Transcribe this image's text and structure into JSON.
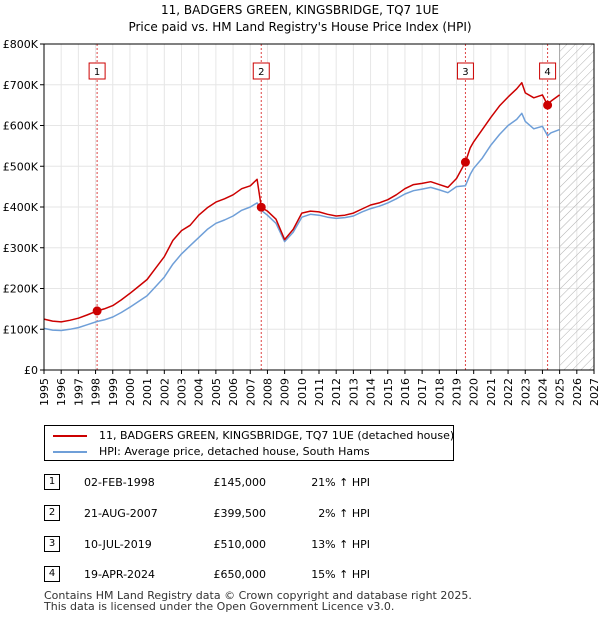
{
  "chart_data": {
    "type": "line",
    "title": "11, BADGERS GREEN, KINGSBRIDGE, TQ7 1UE",
    "subtitle": "Price paid vs. HM Land Registry's House Price Index (HPI)",
    "xlim": [
      1995,
      2027
    ],
    "ylim": [
      0,
      800000
    ],
    "x_ticks": [
      1995,
      1996,
      1997,
      1998,
      1999,
      2000,
      2001,
      2002,
      2003,
      2004,
      2005,
      2006,
      2007,
      2008,
      2009,
      2010,
      2011,
      2012,
      2013,
      2014,
      2015,
      2016,
      2017,
      2018,
      2019,
      2020,
      2021,
      2022,
      2023,
      2024,
      2025,
      2026,
      2027
    ],
    "y_ticks": [
      {
        "value": 0,
        "label": "£0"
      },
      {
        "value": 100000,
        "label": "£100K"
      },
      {
        "value": 200000,
        "label": "£200K"
      },
      {
        "value": 300000,
        "label": "£300K"
      },
      {
        "value": 400000,
        "label": "£400K"
      },
      {
        "value": 500000,
        "label": "£500K"
      },
      {
        "value": 600000,
        "label": "£600K"
      },
      {
        "value": 700000,
        "label": "£700K"
      },
      {
        "value": 800000,
        "label": "£800K"
      }
    ],
    "forecast_start": 2025.0,
    "series": [
      {
        "name": "11, BADGERS GREEN, KINGSBRIDGE, TQ7 1UE (detached house)",
        "color": "#cc0000",
        "x": [
          1995.0,
          1995.5,
          1996.0,
          1996.5,
          1997.0,
          1997.5,
          1998.09,
          1998.5,
          1999.0,
          1999.5,
          2000.0,
          2000.5,
          2001.0,
          2001.5,
          2002.0,
          2002.5,
          2003.0,
          2003.5,
          2004.0,
          2004.5,
          2005.0,
          2005.5,
          2006.0,
          2006.5,
          2007.0,
          2007.4,
          2007.64,
          2008.0,
          2008.5,
          2009.0,
          2009.5,
          2010.0,
          2010.5,
          2011.0,
          2011.5,
          2012.0,
          2012.5,
          2013.0,
          2013.5,
          2014.0,
          2014.5,
          2015.0,
          2015.5,
          2016.0,
          2016.5,
          2017.0,
          2017.5,
          2018.0,
          2018.5,
          2019.0,
          2019.52,
          2019.8,
          2020.0,
          2020.5,
          2021.0,
          2021.5,
          2022.0,
          2022.5,
          2022.8,
          2023.0,
          2023.5,
          2024.0,
          2024.3,
          2024.5,
          2025.0
        ],
        "y": [
          125000,
          120000,
          118000,
          122000,
          127000,
          135000,
          145000,
          150000,
          158000,
          172000,
          188000,
          205000,
          222000,
          250000,
          278000,
          318000,
          342000,
          355000,
          380000,
          398000,
          412000,
          420000,
          430000,
          445000,
          452000,
          468000,
          399500,
          390000,
          370000,
          320000,
          345000,
          385000,
          390000,
          388000,
          382000,
          378000,
          380000,
          385000,
          395000,
          405000,
          410000,
          418000,
          430000,
          445000,
          455000,
          458000,
          462000,
          455000,
          448000,
          470000,
          510000,
          545000,
          560000,
          590000,
          620000,
          648000,
          670000,
          690000,
          705000,
          680000,
          668000,
          675000,
          650000,
          660000,
          675000
        ]
      },
      {
        "name": "HPI: Average price, detached house, South Hams",
        "color": "#6f9fd8",
        "x": [
          1995.0,
          1995.5,
          1996.0,
          1996.5,
          1997.0,
          1997.5,
          1998.09,
          1998.5,
          1999.0,
          1999.5,
          2000.0,
          2000.5,
          2001.0,
          2001.5,
          2002.0,
          2002.5,
          2003.0,
          2003.5,
          2004.0,
          2004.5,
          2005.0,
          2005.5,
          2006.0,
          2006.5,
          2007.0,
          2007.4,
          2007.64,
          2008.0,
          2008.5,
          2009.0,
          2009.5,
          2010.0,
          2010.5,
          2011.0,
          2011.5,
          2012.0,
          2012.5,
          2013.0,
          2013.5,
          2014.0,
          2014.5,
          2015.0,
          2015.5,
          2016.0,
          2016.5,
          2017.0,
          2017.5,
          2018.0,
          2018.5,
          2019.0,
          2019.52,
          2019.8,
          2020.0,
          2020.5,
          2021.0,
          2021.5,
          2022.0,
          2022.5,
          2022.8,
          2023.0,
          2023.5,
          2024.0,
          2024.3,
          2024.5,
          2025.0
        ],
        "y": [
          102000,
          98000,
          97000,
          100000,
          104000,
          111000,
          119000,
          123000,
          130000,
          141000,
          154000,
          168000,
          182000,
          205000,
          228000,
          260000,
          285000,
          305000,
          325000,
          345000,
          360000,
          368000,
          378000,
          392000,
          400000,
          410000,
          392000,
          380000,
          360000,
          315000,
          338000,
          375000,
          382000,
          380000,
          375000,
          372000,
          374000,
          378000,
          388000,
          396000,
          402000,
          410000,
          420000,
          432000,
          440000,
          444000,
          448000,
          442000,
          435000,
          450000,
          452000,
          480000,
          495000,
          520000,
          552000,
          578000,
          600000,
          615000,
          630000,
          610000,
          592000,
          598000,
          575000,
          582000,
          590000
        ]
      }
    ],
    "transactions": [
      {
        "num": "1",
        "x": 1998.09,
        "price": 145000
      },
      {
        "num": "2",
        "x": 2007.64,
        "price": 399500
      },
      {
        "num": "3",
        "x": 2019.52,
        "price": 510000
      },
      {
        "num": "4",
        "x": 2024.3,
        "price": 650000
      }
    ]
  },
  "legend": {
    "property_label": "11, BADGERS GREEN, KINGSBRIDGE, TQ7 1UE (detached house)",
    "hpi_label": "HPI: Average price, detached house, South Hams"
  },
  "table": [
    {
      "num": "1",
      "date": "02-FEB-1998",
      "price": "£145,000",
      "hpi": "21% ↑ HPI"
    },
    {
      "num": "2",
      "date": "21-AUG-2007",
      "price": "£399,500",
      "hpi": "2% ↑ HPI"
    },
    {
      "num": "3",
      "date": "10-JUL-2019",
      "price": "£510,000",
      "hpi": "13% ↑ HPI"
    },
    {
      "num": "4",
      "date": "19-APR-2024",
      "price": "£650,000",
      "hpi": "15% ↑ HPI"
    }
  ],
  "footer": {
    "line1": "Contains HM Land Registry data © Crown copyright and database right 2025.",
    "line2": "This data is licensed under the Open Government Licence v3.0."
  },
  "colors": {
    "property": "#cc0000",
    "hpi": "#6f9fd8",
    "forecast_hatch": "#aaaaaa"
  }
}
